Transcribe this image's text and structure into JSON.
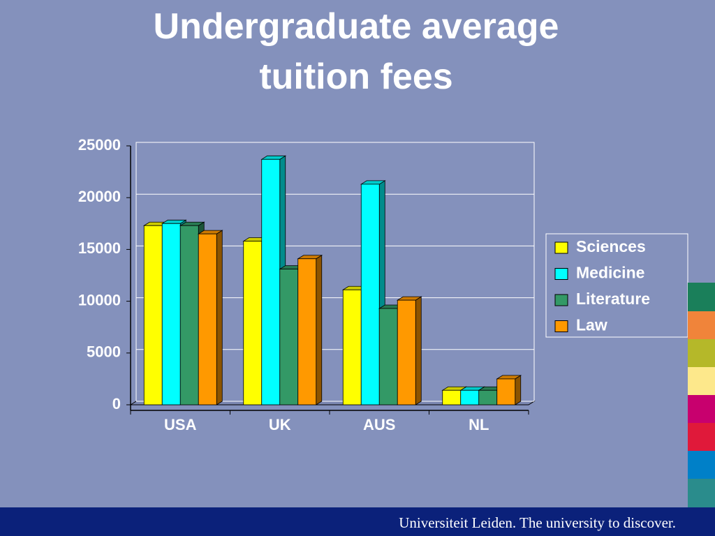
{
  "chart_data": {
    "type": "bar3d",
    "title": "Undergraduate average tuition fees",
    "categories": [
      "USA",
      "UK",
      "AUS",
      "NL"
    ],
    "series": [
      {
        "name": "Sciences",
        "color": "#ffff00",
        "values": [
          17300,
          15800,
          11100,
          1400
        ]
      },
      {
        "name": "Medicine",
        "color": "#00ffff",
        "values": [
          17500,
          23700,
          21300,
          1400
        ]
      },
      {
        "name": "Literature",
        "color": "#339966",
        "values": [
          17300,
          13100,
          9300,
          1400
        ]
      },
      {
        "name": "Law",
        "color": "#ff9900",
        "values": [
          16500,
          14100,
          10100,
          2500
        ]
      }
    ],
    "ylim": [
      0,
      25000
    ],
    "yticks": [
      0,
      5000,
      10000,
      15000,
      20000,
      25000
    ],
    "grid": true,
    "legend": "right"
  },
  "footer": "Universiteit Leiden. The university to discover."
}
